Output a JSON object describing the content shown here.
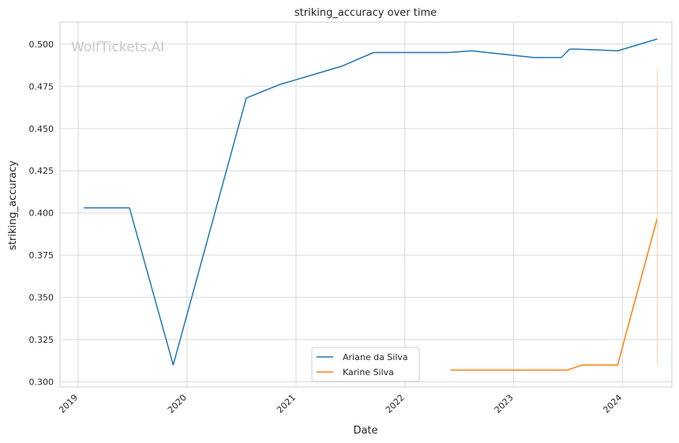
{
  "chart_data": {
    "type": "line",
    "title": "striking_accuracy over time",
    "xlabel": "Date",
    "ylabel": "striking_accuracy",
    "watermark": "WolfTickets.AI",
    "grid": true,
    "legend_position": "bottom-center",
    "x_range": [
      "2018-11-01",
      "2024-06-15"
    ],
    "ylim": [
      0.297,
      0.513
    ],
    "x_ticks": [
      "2019",
      "2020",
      "2021",
      "2022",
      "2023",
      "2024"
    ],
    "y_ticks": [
      "0.300",
      "0.325",
      "0.350",
      "0.375",
      "0.400",
      "0.425",
      "0.450",
      "0.475",
      "0.500"
    ],
    "y_tick_values": [
      0.3,
      0.325,
      0.35,
      0.375,
      0.4,
      0.425,
      0.45,
      0.475,
      0.5
    ],
    "series": [
      {
        "name": "Ariane da Silva",
        "color": "#1f77b4",
        "x": [
          "2019-01-20",
          "2019-06-22",
          "2019-11-16",
          "2020-07-18",
          "2020-11-07",
          "2021-06-05",
          "2021-09-18",
          "2022-05-28",
          "2022-08-13",
          "2023-03-11",
          "2023-06-10",
          "2023-07-08",
          "2023-08-05",
          "2023-12-16",
          "2024-04-27"
        ],
        "y": [
          0.403,
          0.403,
          0.31,
          0.468,
          0.476,
          0.487,
          0.495,
          0.495,
          0.496,
          0.492,
          0.492,
          0.497,
          0.497,
          0.496,
          0.503
        ]
      },
      {
        "name": "Karine Silva",
        "color": "#ff7f0e",
        "x": [
          "2022-06-04",
          "2023-07-01",
          "2023-08-19",
          "2023-12-16",
          "2024-04-27"
        ],
        "y": [
          0.307,
          0.307,
          0.31,
          0.31,
          0.397
        ]
      }
    ],
    "vertical_segment": {
      "x": "2024-04-27",
      "y": [
        0.31,
        0.485
      ],
      "color": "#fbd2b0"
    }
  }
}
